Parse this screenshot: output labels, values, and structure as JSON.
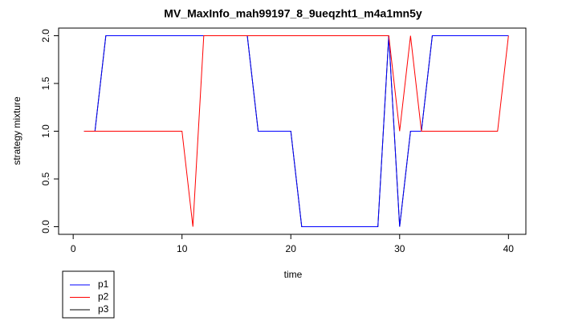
{
  "chart_data": {
    "type": "line",
    "title": "MV_MaxInfo_mah99197_8_9ueqzht1_m4a1mn5y",
    "x_label": "time",
    "y_label": "strategy mixture",
    "x": [
      1,
      2,
      3,
      4,
      5,
      6,
      7,
      8,
      9,
      10,
      11,
      12,
      13,
      14,
      15,
      16,
      17,
      18,
      19,
      20,
      21,
      22,
      23,
      24,
      25,
      26,
      27,
      28,
      29,
      30,
      31,
      32,
      33,
      34,
      35,
      36,
      37,
      38,
      39,
      40
    ],
    "series": [
      {
        "name": "p1",
        "color": "#0000ff",
        "values": [
          1,
          1,
          2,
          2,
          2,
          2,
          2,
          2,
          2,
          2,
          2,
          2,
          2,
          2,
          2,
          2,
          1,
          1,
          1,
          1,
          0,
          0,
          0,
          0,
          0,
          0,
          0,
          0,
          2,
          0,
          1,
          1,
          2,
          2,
          2,
          2,
          2,
          2,
          2,
          2
        ]
      },
      {
        "name": "p2",
        "color": "#ff0000",
        "values": [
          1,
          1,
          1,
          1,
          1,
          1,
          1,
          1,
          1,
          1,
          0,
          2,
          2,
          2,
          2,
          2,
          2,
          2,
          2,
          2,
          2,
          2,
          2,
          2,
          2,
          2,
          2,
          2,
          2,
          1,
          2,
          1,
          1,
          1,
          1,
          1,
          1,
          1,
          1,
          2
        ]
      },
      {
        "name": "p3",
        "color": "#000000",
        "values": [
          1,
          1,
          2,
          2,
          2,
          2,
          2,
          2,
          2,
          2,
          2,
          2,
          2,
          2,
          2,
          2,
          1,
          1,
          1,
          1,
          0,
          0,
          0,
          0,
          0,
          0,
          0,
          0,
          2,
          0,
          1,
          1,
          2,
          2,
          2,
          2,
          2,
          2,
          2,
          2
        ]
      }
    ],
    "xlim": [
      -1.34,
      41.6
    ],
    "ylim": [
      -0.08,
      2.08
    ],
    "xticks": [
      0,
      10,
      20,
      30,
      40
    ],
    "yticks": [
      {
        "value": 0,
        "label": "0.0"
      },
      0.5,
      {
        "value": 1,
        "label": "1.0"
      },
      1.5,
      {
        "value": 2,
        "label": "2.0"
      }
    ],
    "legend": "bottom-left"
  }
}
